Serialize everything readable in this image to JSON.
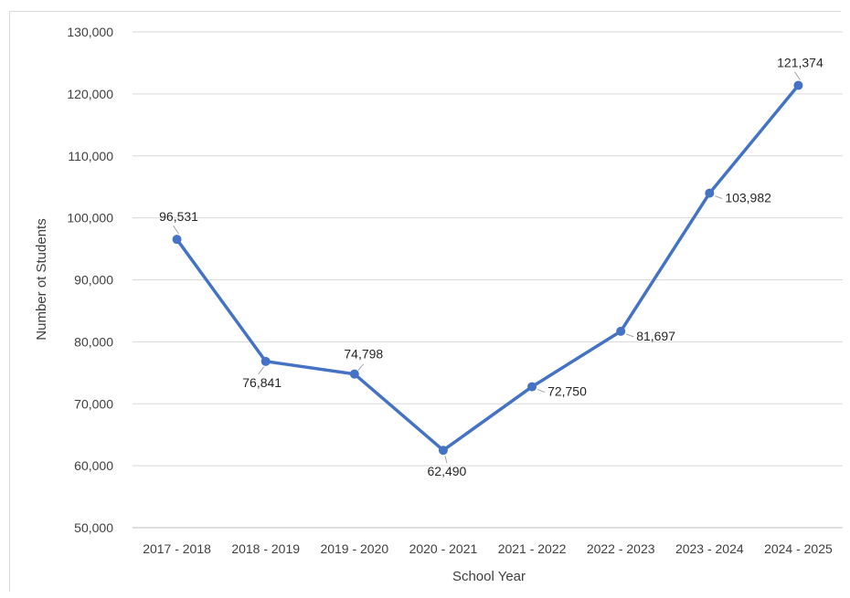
{
  "chart_data": {
    "type": "line",
    "title": "",
    "xlabel": "School Year",
    "ylabel": "Number ot Students",
    "categories": [
      "2017 - 2018",
      "2018 - 2019",
      "2019 - 2020",
      "2020 - 2021",
      "2021 - 2022",
      "2022 - 2023",
      "2023 - 2024",
      "2024 - 2025"
    ],
    "series": [
      {
        "values": [
          96531,
          76841,
          74798,
          62490,
          72750,
          81697,
          103982,
          121374
        ],
        "data_labels": [
          "96,531",
          "76,841",
          "74,798",
          "62,490",
          "72,750",
          "81,697",
          "103,982",
          "121,374"
        ],
        "label_positions": [
          "above",
          "below-right",
          "above-right",
          "below",
          "right",
          "right",
          "right",
          "above"
        ],
        "color": "#4472c4"
      }
    ],
    "ylim": [
      50000,
      130000
    ],
    "yticks": [
      50000,
      60000,
      70000,
      80000,
      90000,
      100000,
      110000,
      120000,
      130000
    ],
    "ytick_labels": [
      "50,000",
      "60,000",
      "70,000",
      "80,000",
      "90,000",
      "100,000",
      "110,000",
      "120,000",
      "130,000"
    ],
    "grid": true,
    "legend": "none"
  }
}
